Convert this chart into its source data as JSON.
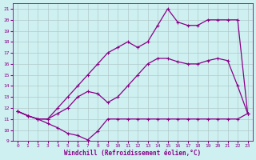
{
  "xlabel": "Windchill (Refroidissement éolien,°C)",
  "bg_color": "#cff0f0",
  "grid_color": "#b0c8c8",
  "line_color": "#880088",
  "xlim": [
    -0.5,
    23.5
  ],
  "ylim": [
    9,
    21.5
  ],
  "xticks": [
    0,
    1,
    2,
    3,
    4,
    5,
    6,
    7,
    8,
    9,
    10,
    11,
    12,
    13,
    14,
    15,
    16,
    17,
    18,
    19,
    20,
    21,
    22,
    23
  ],
  "yticks": [
    9,
    10,
    11,
    12,
    13,
    14,
    15,
    16,
    17,
    18,
    19,
    20,
    21
  ],
  "line1_x": [
    0,
    1,
    2,
    3,
    4,
    5,
    6,
    7,
    8,
    9,
    10,
    11,
    12,
    13,
    14,
    15,
    16,
    17,
    18,
    19,
    20,
    21,
    22,
    23
  ],
  "line1_y": [
    11.7,
    11.3,
    11.0,
    10.6,
    10.2,
    9.7,
    9.5,
    9.1,
    9.9,
    11.0,
    11.0,
    11.0,
    11.0,
    11.0,
    11.0,
    11.0,
    11.0,
    11.0,
    11.0,
    11.0,
    11.0,
    11.0,
    11.0,
    11.5
  ],
  "line2_x": [
    0,
    1,
    2,
    3,
    4,
    5,
    6,
    7,
    8,
    9,
    10,
    11,
    12,
    13,
    14,
    15,
    16,
    17,
    18,
    19,
    20,
    21,
    22,
    23
  ],
  "line2_y": [
    11.7,
    11.3,
    11.0,
    11.0,
    11.5,
    12.0,
    13.0,
    13.5,
    13.3,
    12.5,
    13.0,
    14.0,
    15.0,
    16.0,
    16.5,
    16.5,
    16.2,
    16.0,
    16.0,
    16.3,
    16.5,
    16.3,
    14.0,
    11.5
  ],
  "line3_x": [
    0,
    1,
    2,
    3,
    4,
    5,
    6,
    7,
    8,
    9,
    10,
    11,
    12,
    13,
    14,
    15,
    16,
    17,
    18,
    19,
    20,
    21,
    22,
    23
  ],
  "line3_y": [
    11.7,
    11.3,
    11.0,
    11.0,
    12.0,
    13.0,
    14.0,
    15.0,
    16.0,
    17.0,
    17.5,
    18.0,
    17.5,
    18.0,
    19.5,
    21.0,
    19.8,
    19.5,
    19.5,
    20.0,
    20.0,
    20.0,
    20.0,
    11.5
  ]
}
